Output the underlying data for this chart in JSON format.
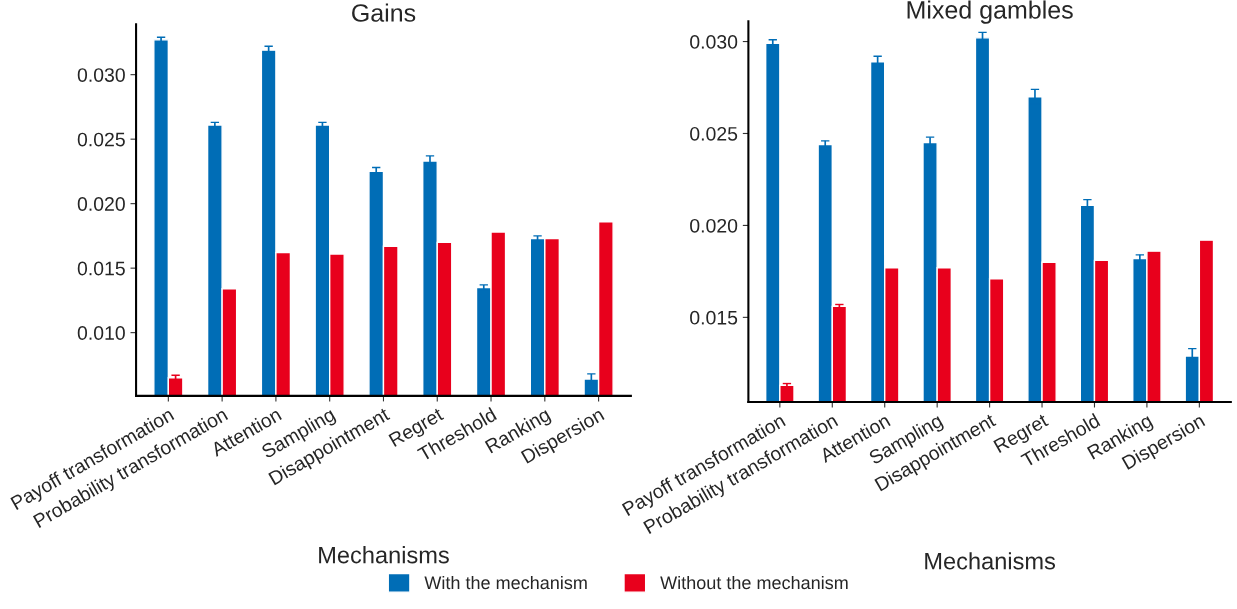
{
  "chart_data": [
    {
      "type": "bar",
      "title": "Gains",
      "xlabel": "Mechanisms",
      "categories": [
        "Payoff transformation",
        "Probability transformation",
        "Attention",
        "Sampling",
        "Disappointment",
        "Regret",
        "Threshold",
        "Ranking",
        "Dispersion"
      ],
      "series": [
        {
          "name": "With the mechanism",
          "color": "#006db6",
          "values": [
            0.0327,
            0.0261,
            0.0319,
            0.0261,
            0.0225,
            0.0233,
            0.0135,
            0.0173,
            0.0064
          ],
          "errors": [
            0.0002,
            0.0002,
            0.0003,
            0.0002,
            0.0003,
            0.0004,
            0.0002,
            0.0002,
            0.0004
          ]
        },
        {
          "name": "Without the mechanism",
          "color": "#e8001c",
          "values": [
            0.0065,
            0.0134,
            0.0162,
            0.0161,
            0.0167,
            0.017,
            0.0178,
            0.0173,
            0.0186
          ],
          "errors": [
            0.0002,
            null,
            null,
            null,
            null,
            null,
            null,
            null,
            null
          ]
        }
      ],
      "ylim": [
        0.0051,
        0.0339
      ],
      "yticks": [
        {
          "value": 0.01,
          "label": "0.010"
        },
        {
          "value": 0.015,
          "label": "0.015"
        },
        {
          "value": 0.02,
          "label": "0.020"
        },
        {
          "value": 0.025,
          "label": "0.025"
        },
        {
          "value": 0.03,
          "label": "0.030"
        }
      ],
      "grid": false,
      "legend": "bottom"
    },
    {
      "type": "bar",
      "title": "Mixed gambles",
      "xlabel": "Mechanisms",
      "categories": [
        "Payoff transformation",
        "Probability transformation",
        "Attention",
        "Sampling",
        "Disappointment",
        "Regret",
        "Threshold",
        "Ranking",
        "Dispersion"
      ],
      "series": [
        {
          "name": "With the mechanism",
          "color": "#006db6",
          "values": [
            0.0299,
            0.0244,
            0.0289,
            0.0245,
            0.0302,
            0.027,
            0.0211,
            0.0182,
            0.0129
          ],
          "errors": [
            0.0002,
            0.0002,
            0.0003,
            0.0003,
            0.0003,
            0.0004,
            0.0003,
            0.0002,
            0.0004
          ]
        },
        {
          "name": "Without the mechanism",
          "color": "#e8001c",
          "values": [
            0.0113,
            0.0156,
            0.0177,
            0.0177,
            0.0171,
            0.018,
            0.0181,
            0.0186,
            0.0192
          ],
          "errors": [
            0.0001,
            0.0001,
            null,
            null,
            null,
            null,
            null,
            null,
            null
          ]
        }
      ],
      "ylim": [
        0.0104,
        0.0311
      ],
      "yticks": [
        {
          "value": 0.015,
          "label": "0.015"
        },
        {
          "value": 0.02,
          "label": "0.020"
        },
        {
          "value": 0.025,
          "label": "0.025"
        },
        {
          "value": 0.03,
          "label": "0.030"
        }
      ],
      "grid": false,
      "legend": "bottom"
    }
  ]
}
